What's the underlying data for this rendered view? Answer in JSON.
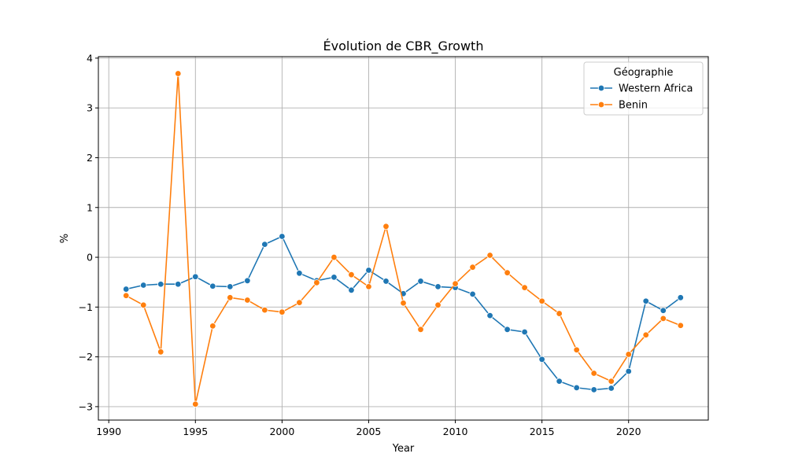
{
  "chart_data": {
    "type": "line",
    "title": "Évolution de CBR_Growth",
    "xlabel": "Year",
    "ylabel": "%",
    "xlim": [
      1989.4,
      2024.6
    ],
    "ylim": [
      -3.27,
      4.03
    ],
    "xticks": [
      1990,
      1995,
      2000,
      2005,
      2010,
      2015,
      2020
    ],
    "yticks": [
      -3,
      -2,
      -1,
      0,
      1,
      2,
      3,
      4
    ],
    "grid": true,
    "legend": {
      "title": "Géographie",
      "position": "top-right"
    },
    "x": [
      1991,
      1992,
      1993,
      1994,
      1995,
      1996,
      1997,
      1998,
      1999,
      2000,
      2001,
      2002,
      2003,
      2004,
      2005,
      2006,
      2007,
      2008,
      2009,
      2010,
      2011,
      2012,
      2013,
      2014,
      2015,
      2016,
      2017,
      2018,
      2019,
      2020,
      2021,
      2022,
      2023
    ],
    "series": [
      {
        "name": "Western Africa",
        "color": "#1f77b4",
        "values": [
          -0.64,
          -0.56,
          -0.54,
          -0.54,
          -0.39,
          -0.58,
          -0.59,
          -0.47,
          0.26,
          0.42,
          -0.32,
          -0.47,
          -0.4,
          -0.66,
          -0.26,
          -0.48,
          -0.73,
          -0.48,
          -0.59,
          -0.61,
          -0.74,
          -1.17,
          -1.45,
          -1.5,
          -2.05,
          -2.49,
          -2.62,
          -2.66,
          -2.63,
          -2.29,
          -0.88,
          -1.07,
          -0.81
        ]
      },
      {
        "name": "Benin",
        "color": "#ff7f0e",
        "values": [
          -0.77,
          -0.96,
          -1.9,
          3.69,
          -2.95,
          -1.38,
          -0.81,
          -0.86,
          -1.06,
          -1.1,
          -0.91,
          -0.51,
          0.0,
          -0.35,
          -0.59,
          0.62,
          -0.92,
          -1.45,
          -0.96,
          -0.53,
          -0.2,
          0.04,
          -0.31,
          -0.61,
          -0.88,
          -1.13,
          -1.86,
          -2.33,
          -2.49,
          -1.95,
          -1.56,
          -1.23,
          -1.37
        ]
      }
    ]
  }
}
